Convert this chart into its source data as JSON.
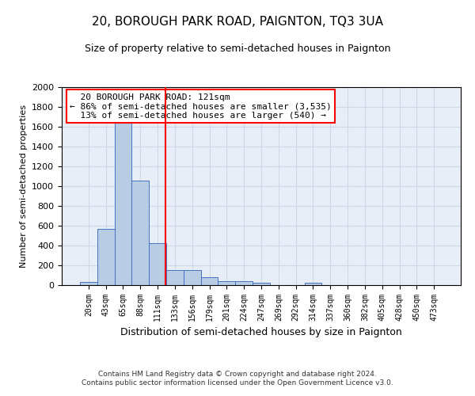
{
  "title": "20, BOROUGH PARK ROAD, PAIGNTON, TQ3 3UA",
  "subtitle": "Size of property relative to semi-detached houses in Paignton",
  "xlabel": "Distribution of semi-detached houses by size in Paignton",
  "ylabel": "Number of semi-detached properties",
  "footer_line1": "Contains HM Land Registry data © Crown copyright and database right 2024.",
  "footer_line2": "Contains public sector information licensed under the Open Government Licence v3.0.",
  "annotation_line1": "  20 BOROUGH PARK ROAD: 121sqm",
  "annotation_line2": "← 86% of semi-detached houses are smaller (3,535)",
  "annotation_line3": "  13% of semi-detached houses are larger (540) →",
  "property_size": 121,
  "bar_color": "#b8cce4",
  "bar_edge_color": "#4472c4",
  "vline_color": "red",
  "annotation_box_edge_color": "red",
  "categories": [
    "20sqm",
    "43sqm",
    "65sqm",
    "88sqm",
    "111sqm",
    "133sqm",
    "156sqm",
    "179sqm",
    "201sqm",
    "224sqm",
    "247sqm",
    "269sqm",
    "292sqm",
    "314sqm",
    "337sqm",
    "360sqm",
    "382sqm",
    "405sqm",
    "428sqm",
    "450sqm",
    "473sqm"
  ],
  "values": [
    30,
    570,
    1670,
    1060,
    425,
    155,
    155,
    80,
    40,
    40,
    25,
    0,
    0,
    25,
    0,
    0,
    0,
    0,
    0,
    0,
    0
  ],
  "ylim": [
    0,
    2000
  ],
  "yticks": [
    0,
    200,
    400,
    600,
    800,
    1000,
    1200,
    1400,
    1600,
    1800,
    2000
  ],
  "grid_color": "#d0d8e8",
  "background_color": "#e8eef8",
  "title_fontsize": 11,
  "subtitle_fontsize": 9,
  "ylabel_fontsize": 8,
  "xlabel_fontsize": 9,
  "tick_fontsize": 8,
  "xtick_fontsize": 7,
  "footer_fontsize": 6.5,
  "annotation_fontsize": 8
}
